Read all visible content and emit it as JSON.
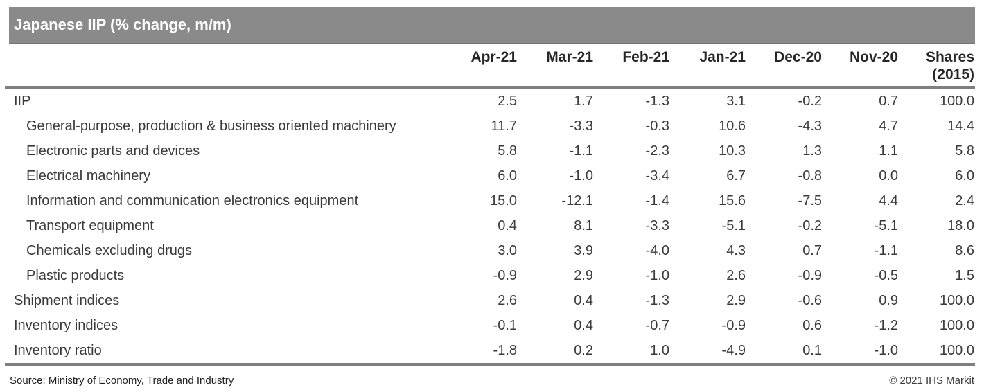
{
  "chart_data": {
    "type": "table",
    "title": "Japanese IIP (% change, m/m)",
    "columns": [
      "Apr-21",
      "Mar-21",
      "Feb-21",
      "Jan-21",
      "Dec-20",
      "Nov-20",
      "Shares (2015)"
    ],
    "shares_col_line1": "Shares",
    "shares_col_line2": "(2015)",
    "rows": [
      {
        "label": "IIP",
        "indent": false,
        "values": [
          "2.5",
          "1.7",
          "-1.3",
          "3.1",
          "-0.2",
          "0.7",
          "100.0"
        ]
      },
      {
        "label": "General-purpose, production & business oriented machinery",
        "indent": true,
        "values": [
          "11.7",
          "-3.3",
          "-0.3",
          "10.6",
          "-4.3",
          "4.7",
          "14.4"
        ]
      },
      {
        "label": "Electronic parts and devices",
        "indent": true,
        "values": [
          "5.8",
          "-1.1",
          "-2.3",
          "10.3",
          "1.3",
          "1.1",
          "5.8"
        ]
      },
      {
        "label": "Electrical machinery",
        "indent": true,
        "values": [
          "6.0",
          "-1.0",
          "-3.4",
          "6.7",
          "-0.8",
          "0.0",
          "6.0"
        ]
      },
      {
        "label": "Information and communication electronics equipment",
        "indent": true,
        "values": [
          "15.0",
          "-12.1",
          "-1.4",
          "15.6",
          "-7.5",
          "4.4",
          "2.4"
        ]
      },
      {
        "label": "Transport equipment",
        "indent": true,
        "values": [
          "0.4",
          "8.1",
          "-3.3",
          "-5.1",
          "-0.2",
          "-5.1",
          "18.0"
        ]
      },
      {
        "label": "Chemicals excluding drugs",
        "indent": true,
        "values": [
          "3.0",
          "3.9",
          "-4.0",
          "4.3",
          "0.7",
          "-1.1",
          "8.6"
        ]
      },
      {
        "label": "Plastic products",
        "indent": true,
        "values": [
          "-0.9",
          "2.9",
          "-1.0",
          "2.6",
          "-0.9",
          "-0.5",
          "1.5"
        ]
      },
      {
        "label": "Shipment indices",
        "indent": false,
        "values": [
          "2.6",
          "0.4",
          "-1.3",
          "2.9",
          "-0.6",
          "0.9",
          "100.0"
        ]
      },
      {
        "label": "Inventory indices",
        "indent": false,
        "values": [
          "-0.1",
          "0.4",
          "-0.7",
          "-0.9",
          "0.6",
          "-1.2",
          "100.0"
        ]
      },
      {
        "label": "Inventory ratio",
        "indent": false,
        "values": [
          "-1.8",
          "0.2",
          "1.0",
          "-4.9",
          "0.1",
          "-1.0",
          "100.0"
        ]
      }
    ]
  },
  "footer": {
    "source": "Source: Ministry of Economy, Trade and Industry",
    "copyright": "© 2021 IHS Markit"
  },
  "colors": {
    "title_bar_bg": "#8a8a8a",
    "title_text": "#ffffff",
    "header_text": "#262626",
    "body_text": "#3a3a3a",
    "rule": "#7f7f7f",
    "background": "#ffffff"
  }
}
